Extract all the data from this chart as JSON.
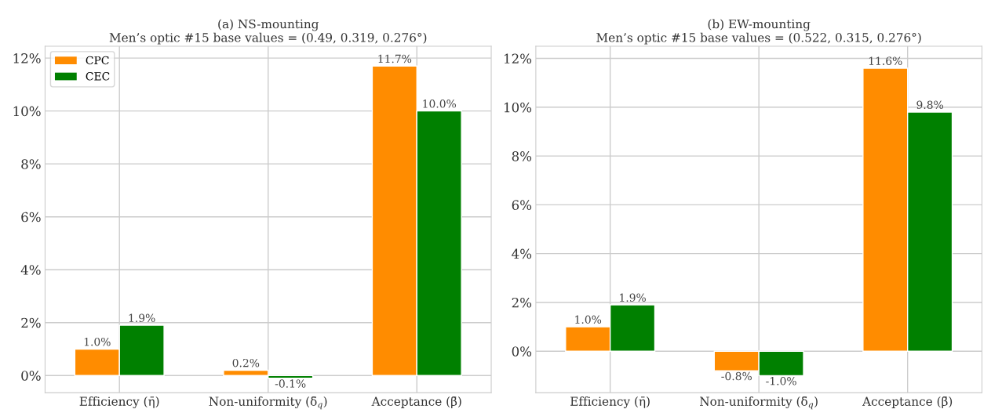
{
  "chart_data": [
    {
      "type": "bar",
      "title": "(a) NS-mounting",
      "subtitle": "Men’s optic #15 base values = (0.49, 0.319, 0.276°)",
      "categories": [
        "Efficiency (η̄)",
        "Non-uniformity (δ̄$_{q}$)",
        "Acceptance (β̄)"
      ],
      "series": [
        {
          "name": "CPC",
          "color": "#ff8c00",
          "values": [
            1.0,
            0.2,
            11.7
          ],
          "value_labels": [
            "1.0%",
            "0.2%",
            "11.7%"
          ]
        },
        {
          "name": "CEC",
          "color": "#008000",
          "values": [
            1.9,
            -0.1,
            10.0
          ],
          "value_labels": [
            "1.9%",
            "-0.1%",
            "10.0%"
          ]
        }
      ],
      "ylim": [
        -0.65,
        12.45
      ],
      "yticks": [
        {
          "value": 0,
          "label": "0%"
        },
        {
          "value": 2,
          "label": "2%"
        },
        {
          "value": 4,
          "label": "4%"
        },
        {
          "value": 6,
          "label": "6%"
        },
        {
          "value": 8,
          "label": "8%"
        },
        {
          "value": 10,
          "label": "10%"
        },
        {
          "value": 12,
          "label": "12%"
        }
      ],
      "grid": true,
      "legend": "top left"
    },
    {
      "type": "bar",
      "title": "(b) EW-mounting",
      "subtitle": "Men’s optic #15 base values = (0.522, 0.315, 0.276°)",
      "categories": [
        "Efficiency (η̄)",
        "Non-uniformity (δ̄$_{q}$)",
        "Acceptance (β̄)"
      ],
      "series": [
        {
          "color": "#ff8c00",
          "values": [
            1.0,
            -0.8,
            11.6
          ],
          "value_labels": [
            "1.0%",
            "-0.8%",
            "11.6%"
          ]
        },
        {
          "color": "#008000",
          "values": [
            1.9,
            -1.0,
            9.8
          ],
          "value_labels": [
            "1.9%",
            "-1.0%",
            "9.8%"
          ]
        }
      ],
      "ylim": [
        -1.7,
        12.5
      ],
      "yticks": [
        {
          "value": 0,
          "label": "0%"
        },
        {
          "value": 2,
          "label": "2%"
        },
        {
          "value": 4,
          "label": "4%"
        },
        {
          "value": 6,
          "label": "6%"
        },
        {
          "value": 8,
          "label": "8%"
        },
        {
          "value": 10,
          "label": "10%"
        },
        {
          "value": 12,
          "label": "12%"
        }
      ],
      "grid": true
    }
  ]
}
